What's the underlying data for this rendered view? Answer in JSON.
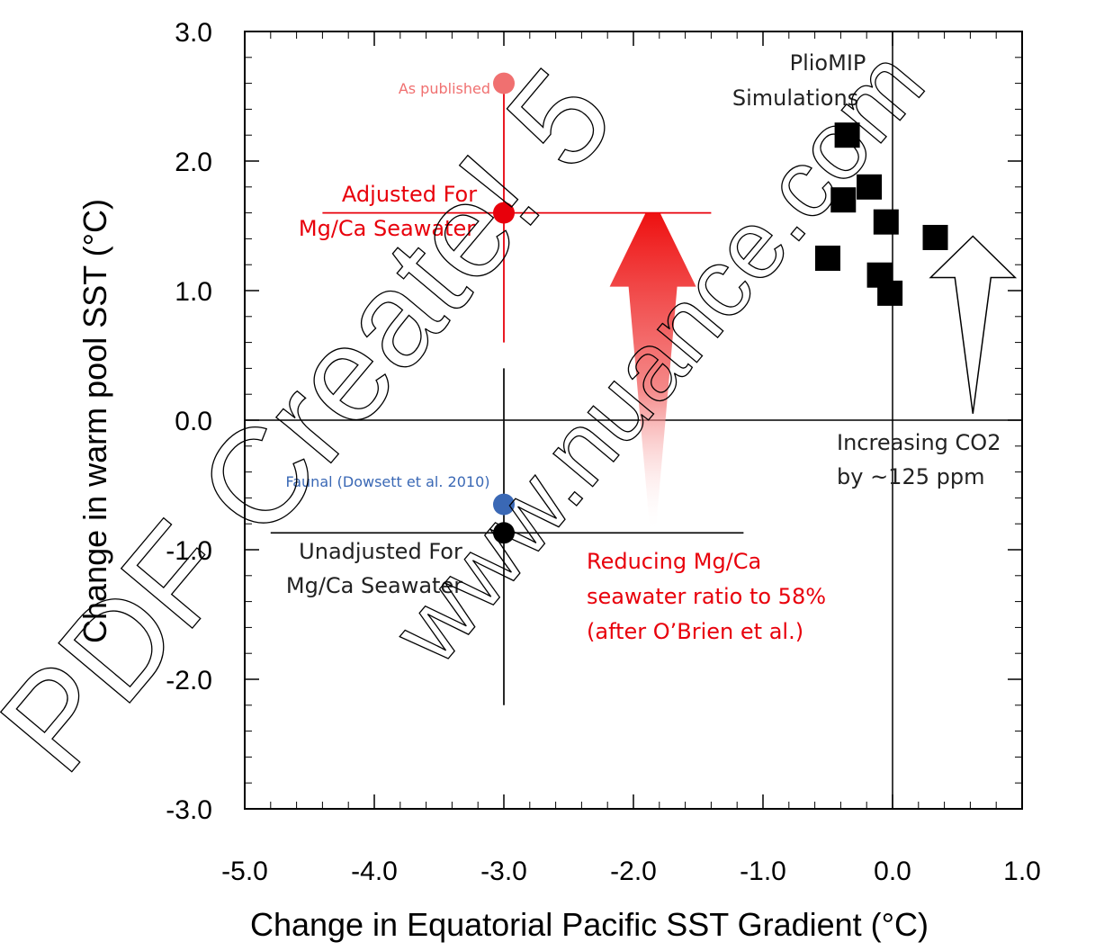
{
  "chart_data": {
    "type": "scatter",
    "xlabel": "Change in Equatorial Pacific SST Gradient (°C)",
    "ylabel": "Change in warm pool SST (°C)",
    "xlim": [
      -5.0,
      1.0
    ],
    "ylim": [
      -3.0,
      3.0
    ],
    "x_ticks": [
      "-5.0",
      "-4.0",
      "-3.0",
      "-2.0",
      "-1.0",
      "0.0",
      "1.0"
    ],
    "y_ticks": [
      "3.0",
      "2.0",
      "1.0",
      "0.0",
      "-1.0",
      "-2.0",
      "-3.0"
    ],
    "grid": false,
    "series": [
      {
        "name": "PlioMIP Simulations",
        "marker": "square",
        "color": "#000000",
        "points": [
          {
            "x": -0.35,
            "y": 2.2
          },
          {
            "x": -0.38,
            "y": 1.7
          },
          {
            "x": -0.18,
            "y": 1.8
          },
          {
            "x": -0.05,
            "y": 1.53
          },
          {
            "x": -0.5,
            "y": 1.25
          },
          {
            "x": -0.1,
            "y": 1.12
          },
          {
            "x": -0.02,
            "y": 0.98
          },
          {
            "x": 0.33,
            "y": 1.41
          }
        ]
      },
      {
        "name": "As published",
        "marker": "circle",
        "color": "#f07070",
        "points": [
          {
            "x": -3.0,
            "y": 2.6
          }
        ]
      },
      {
        "name": "Adjusted For Mg/Ca Seawater",
        "marker": "circle",
        "color": "#e8000b",
        "points": [
          {
            "x": -3.0,
            "y": 1.6
          }
        ],
        "error_x": [
          -4.4,
          -1.4
        ],
        "error_y": [
          0.6,
          2.6
        ]
      },
      {
        "name": "Faunal (Dowsett et al. 2010)",
        "marker": "circle",
        "color": "#3a68b5",
        "points": [
          {
            "x": -3.0,
            "y": -0.65
          }
        ]
      },
      {
        "name": "Unadjusted For Mg/Ca Seawater",
        "marker": "circle",
        "color": "#000000",
        "points": [
          {
            "x": -3.0,
            "y": -0.87
          }
        ],
        "error_x": [
          -4.8,
          -1.15
        ],
        "error_y": [
          -2.2,
          0.4
        ]
      }
    ],
    "reference_lines": {
      "x": 0.0,
      "y": 0.0
    },
    "annotations": {
      "pliomip": [
        "PlioMIP",
        "Simulations"
      ],
      "as_published": "As published",
      "adjusted": [
        "Adjusted For",
        "Mg/Ca Seawater"
      ],
      "faunal": "Faunal (Dowsett et al. 2010)",
      "unadjusted": [
        "Unadjusted For",
        "Mg/Ca Seawater"
      ],
      "reducing": [
        "Reducing Mg/Ca",
        "seawater ratio to 58%",
        "(after O’Brien et al.)"
      ],
      "co2": [
        "Increasing CO2",
        "by ~125 ppm"
      ]
    },
    "arrows": [
      {
        "name": "mgca-arrow",
        "x": -1.85,
        "y_from": -0.87,
        "y_to": 1.6,
        "color": "#e8000b"
      },
      {
        "name": "co2-arrow",
        "x": 0.62,
        "y_from": 0.05,
        "y_to": 1.42,
        "color": "#ffffff"
      }
    ],
    "colors": {
      "red": "#e8000b",
      "light_red": "#f07070",
      "blue": "#3a68b5",
      "black": "#000000"
    },
    "watermark": [
      "PDF Create! 5",
      "www.nuance.com"
    ]
  }
}
